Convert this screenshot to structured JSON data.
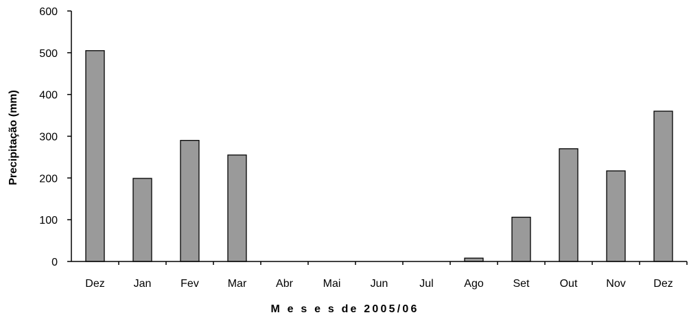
{
  "chart_data": {
    "type": "bar",
    "title": "",
    "xlabel": "M e s e s de 2005/06",
    "ylabel": "Precipitação (mm)",
    "ylim": [
      0,
      600
    ],
    "yticks": [
      "0",
      "100",
      "200",
      "300",
      "400",
      "500",
      "600"
    ],
    "categories": [
      "Dez",
      "Jan",
      "Fev",
      "Mar",
      "Abr",
      "Mai",
      "Jun",
      "Jul",
      "Ago",
      "Set",
      "Out",
      "Nov",
      "Dez"
    ],
    "values": [
      505,
      199,
      290,
      255,
      0,
      0,
      0,
      0,
      8,
      106,
      270,
      217,
      360
    ],
    "grid": false,
    "legend": "none",
    "colors": {
      "bar_fill": "#9a9a9a",
      "bar_stroke": "#000000",
      "axis": "#000000"
    }
  }
}
